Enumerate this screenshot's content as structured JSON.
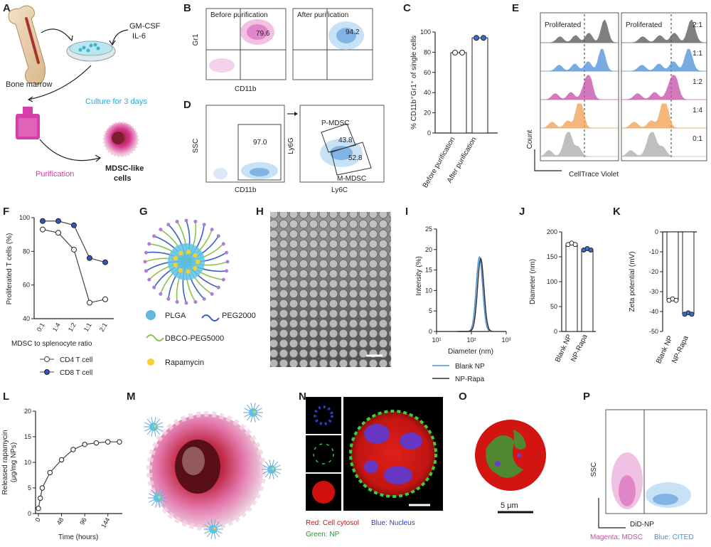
{
  "panel_letters": [
    "A",
    "B",
    "C",
    "D",
    "E",
    "F",
    "G",
    "H",
    "I",
    "J",
    "K",
    "L",
    "M",
    "N",
    "O",
    "P"
  ],
  "panel_a": {
    "bone_marrow": "Bone marrow",
    "cytokine_1": "GM-CSF",
    "cytokine_2": "IL-6",
    "culture": "Culture for 3 days",
    "purification": "Purification",
    "product_line1": "MDSC-like",
    "product_line2": "cells",
    "colors": {
      "culture": "#2aa7d8",
      "purification": "#d43fa8"
    }
  },
  "panel_b": {
    "before_title": "Before purification",
    "after_title": "After purification",
    "before_pct": "79.6",
    "after_pct": "94.2",
    "ylabel": "Gr1",
    "xlabel": "CD11b"
  },
  "panel_d": {
    "gate_pct": "97.0",
    "ylabel": "SSC",
    "xlabel": "CD11b",
    "ylabel2": "Ly6G",
    "xlabel2": "Ly6C",
    "pmdsc_label": "P-MDSC",
    "mmdsc_label": "M-MDSC",
    "pmdsc_pct": "43.8",
    "mmdsc_pct": "52.8"
  },
  "panel_e": {
    "title_left": "Proliferated",
    "title_right": "Proliferated",
    "ratios": [
      "2:1",
      "1:1",
      "1:2",
      "1:4",
      "0:1"
    ],
    "colors": [
      "#555555",
      "#4a90d9",
      "#c64ca8",
      "#f0a050",
      "#aaaaaa"
    ],
    "ylabel": "Count",
    "xlabel": "CellTrace Violet"
  },
  "panel_g": {
    "legend": [
      {
        "name": "PLGA",
        "color": "#3aa7d8"
      },
      {
        "name": "PEG2000",
        "color": "#3a5fc8"
      },
      {
        "name": "DBCO-PEG5000",
        "color": "#8bc34a"
      },
      {
        "name": "Rapamycin",
        "color": "#f6d02f"
      }
    ]
  },
  "panel_n": {
    "caption_red": "Red: Cell cytosol",
    "caption_blue": "Blue: Nucleus",
    "caption_green": "Green: NP"
  },
  "panel_o": {
    "scale": "5 μm"
  },
  "panel_p": {
    "ylabel": "SSC",
    "xlabel": "DiD-NP",
    "caption_magenta": "Magenta: MDSC",
    "caption_blue": "Blue: CITED"
  },
  "chart_data": [
    {
      "id": "C",
      "type": "bar",
      "categories": [
        "Before purification",
        "After purification"
      ],
      "values": [
        79.6,
        94.2
      ],
      "ylabel": "% CD11b⁺Gr1⁺ of single cells",
      "ylim": [
        0,
        100
      ],
      "yticks": [
        0,
        20,
        40,
        60,
        80,
        100
      ]
    },
    {
      "id": "F",
      "type": "line",
      "x": [
        "0:1",
        "1:4",
        "1:2",
        "1:1",
        "2:1"
      ],
      "xlabel": "MDSC to splenocyte ratio",
      "ylabel": "Proliferated T cells (%)",
      "ylim": [
        40,
        100
      ],
      "yticks": [
        40,
        60,
        80,
        100
      ],
      "series": [
        {
          "name": "CD4 T cell",
          "values": [
            93,
            91,
            81,
            49.5,
            51.5
          ]
        },
        {
          "name": "CD8 T cell",
          "values": [
            98,
            98,
            95.5,
            76,
            73.5
          ]
        }
      ]
    },
    {
      "id": "I",
      "type": "line",
      "xlabel": "Diameter (nm)",
      "ylabel": "Intensity (%)",
      "ylim": [
        0,
        25
      ],
      "yticks": [
        0,
        5,
        10,
        15,
        20,
        25
      ],
      "xticks": [
        "10¹",
        "10²",
        "10³"
      ],
      "series": [
        {
          "name": "Blank NP",
          "peak_nm": 170,
          "peak": 18.2,
          "color": "#4a90d9"
        },
        {
          "name": "NP-Rapa",
          "peak_nm": 185,
          "peak": 17.8,
          "color": "#333333"
        }
      ]
    },
    {
      "id": "J",
      "type": "bar",
      "categories": [
        "Blank NP",
        "NP-Rapa"
      ],
      "values": [
        176,
        165
      ],
      "ylabel": "Diameter (nm)",
      "ylim": [
        0,
        200
      ],
      "yticks": [
        0,
        50,
        100,
        150,
        200
      ]
    },
    {
      "id": "K",
      "type": "bar",
      "categories": [
        "Blank NP",
        "NP-Rapa"
      ],
      "values": [
        -34,
        -41
      ],
      "ylabel": "Zeta potential (mV)",
      "ylim": [
        -50,
        0
      ],
      "yticks": [
        0,
        -10,
        -20,
        -30,
        -40,
        -50
      ]
    },
    {
      "id": "L",
      "type": "line",
      "xlabel": "Time (hours)",
      "ylabel_line1": "Released rapamycin",
      "ylabel_line2": "(μg/mg NPs)",
      "ylim": [
        0,
        20
      ],
      "yticks": [
        0,
        5,
        10,
        15,
        20
      ],
      "xticks": [
        0,
        48,
        96,
        144
      ],
      "x": [
        0,
        4,
        8,
        24,
        48,
        72,
        96,
        120,
        144,
        168
      ],
      "values": [
        1,
        3,
        5,
        8,
        10.5,
        12.5,
        13.5,
        13.8,
        14,
        14
      ]
    }
  ]
}
